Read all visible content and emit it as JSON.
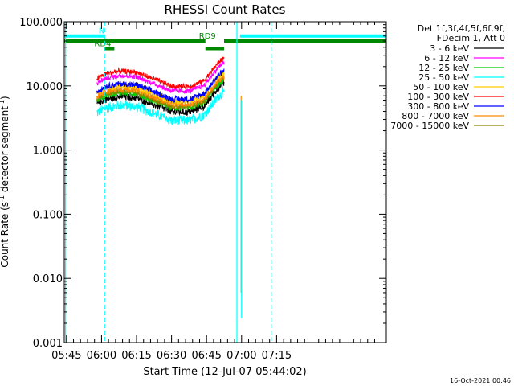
{
  "chart_data": {
    "type": "line",
    "title": "RHESSI Count Rates",
    "xlabel": "Start Time (12-Jul-07 05:44:02)",
    "ylabel_main": "Count Rate (s",
    "ylabel_sup": "-1",
    "ylabel_tail": " detector segment",
    "ylabel_sup2": "-1",
    "ylabel_close": ")",
    "y_scale": "log",
    "ylim": [
      0.001,
      100
    ],
    "xlim_min": [
      344.03,
      482
    ],
    "x_ticks": [
      {
        "min": 345,
        "label": "05:45"
      },
      {
        "min": 360,
        "label": "06:00"
      },
      {
        "min": 375,
        "label": "06:15"
      },
      {
        "min": 390,
        "label": "06:30"
      },
      {
        "min": 405,
        "label": "06:45"
      },
      {
        "min": 420,
        "label": "07:00"
      },
      {
        "min": 435,
        "label": "07:15"
      }
    ],
    "y_ticks": [
      {
        "value": 100,
        "label": "100.000"
      },
      {
        "value": 10,
        "label": "10.000"
      },
      {
        "value": 1,
        "label": "1.000"
      },
      {
        "value": 0.1,
        "label": "0.100"
      },
      {
        "value": 0.01,
        "label": "0.010"
      },
      {
        "value": 0.001,
        "label": "0.001"
      }
    ],
    "legend": {
      "placement": "top-right",
      "header": [
        "Det 1f,3f,4f,5f,6f,9f,",
        "FDecim 1, Att 0"
      ],
      "entries": [
        {
          "label": "3 - 6 keV",
          "color": "#000000"
        },
        {
          "label": "6 - 12 keV",
          "color": "#ff00ff"
        },
        {
          "label": "12 - 25 keV",
          "color": "#00cc00"
        },
        {
          "label": "25 - 50 keV",
          "color": "#00ffff"
        },
        {
          "label": "50 - 100 keV",
          "color": "#ffcc00"
        },
        {
          "label": "100 - 300 keV",
          "color": "#ff0000"
        },
        {
          "label": "300 - 800 keV",
          "color": "#0000ff"
        },
        {
          "label": "800 - 7000 keV",
          "color": "#ff8800"
        },
        {
          "label": "7000 - 15000 keV",
          "color": "#888800"
        }
      ]
    },
    "data_start_min": 358,
    "data_end_min": 412.5,
    "profile_points": [
      [
        358,
        0.0
      ],
      [
        362,
        0.08
      ],
      [
        368,
        0.12
      ],
      [
        375,
        0.1
      ],
      [
        382,
        0.0
      ],
      [
        390,
        -0.12
      ],
      [
        398,
        -0.12
      ],
      [
        404,
        -0.03
      ],
      [
        410,
        0.25
      ],
      [
        413,
        0.34
      ],
      [
        416,
        0.36
      ],
      [
        418,
        0.32
      ],
      [
        419.5,
        0.26
      ]
    ],
    "series": [
      {
        "name": "25 - 50 keV",
        "color": "#00ffff",
        "base": 3.8,
        "noise": 0.06
      },
      {
        "name": "3 - 6 keV",
        "color": "#000000",
        "base": 5.2,
        "noise": 0.045
      },
      {
        "name": "12 - 25 keV",
        "color": "#00cc00",
        "base": 6.0,
        "noise": 0.04
      },
      {
        "name": "7000 - 15000 keV",
        "color": "#888800",
        "base": 6.3,
        "noise": 0.035
      },
      {
        "name": "800 - 7000 keV",
        "color": "#ff8800",
        "base": 6.8,
        "noise": 0.035
      },
      {
        "name": "50 - 100 keV",
        "color": "#ffcc00",
        "base": 7.6,
        "noise": 0.035
      },
      {
        "name": "300 - 800 keV",
        "color": "#0000ff",
        "base": 8.2,
        "noise": 0.035
      },
      {
        "name": "6 - 12 keV",
        "color": "#ff00ff",
        "base": 11.0,
        "noise": 0.03
      },
      {
        "name": "100 - 300 keV",
        "color": "#ff0000",
        "base": 13.0,
        "noise": 0.03
      }
    ],
    "drop_lines": [
      {
        "name": "800 - 7000 keV",
        "color": "#ff8800",
        "x_min": 419.8,
        "y_from": 7.0,
        "y_to": 0.006
      },
      {
        "name": "25 - 50 keV",
        "color": "#00ffff",
        "x_min": 420.0,
        "y_from": 6.0,
        "y_to": 0.0024
      }
    ],
    "annotation_bars": [
      {
        "label": "N",
        "color": "#00ffff",
        "value": 60,
        "segments": [
          [
            344.03,
            361.5
          ],
          [
            419.3,
            482
          ]
        ]
      },
      {
        "label": "RD9",
        "color": "#008800",
        "value": 50,
        "segments": [
          [
            344.03,
            404.5
          ],
          [
            412.5,
            482
          ]
        ]
      },
      {
        "label": "RD4",
        "color": "#008800",
        "value": 38,
        "segments": [
          [
            361.0,
            365.5
          ],
          [
            404.5,
            412.5
          ]
        ]
      }
    ],
    "vlines": [
      {
        "x_min": 344.6,
        "color": "#00ffff",
        "style": "solid"
      },
      {
        "x_min": 361.3,
        "color": "#00ffff",
        "style": "dashed"
      },
      {
        "x_min": 418.0,
        "color": "#00ffff",
        "style": "solid"
      },
      {
        "x_min": 432.7,
        "color": "#00ffff",
        "style": "dashed"
      }
    ]
  },
  "footer": {
    "timestamp": "16-Oct-2021 00:46"
  }
}
